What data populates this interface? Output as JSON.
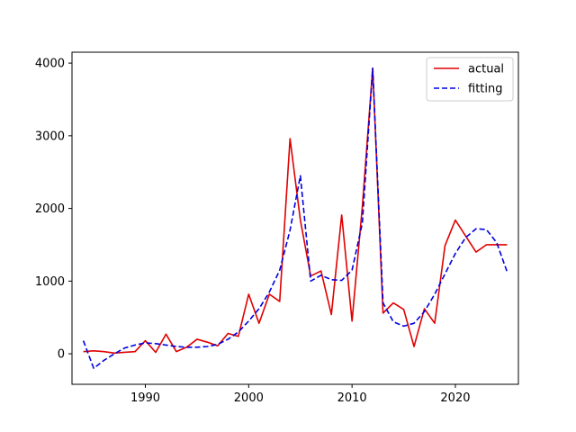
{
  "chart_data": {
    "type": "line",
    "title": "",
    "xlabel": "",
    "ylabel": "",
    "xlim": [
      1982.9,
      2026.1
    ],
    "ylim": [
      -420,
      4150
    ],
    "xticks": [
      1990,
      2000,
      2010,
      2020
    ],
    "yticks": [
      0,
      1000,
      2000,
      3000,
      4000
    ],
    "grid": false,
    "legend_position": "top-right",
    "x": [
      1984,
      1985,
      1986,
      1987,
      1988,
      1989,
      1990,
      1991,
      1992,
      1993,
      1994,
      1995,
      1996,
      1997,
      1998,
      1999,
      2000,
      2001,
      2002,
      2003,
      2004,
      2005,
      2006,
      2007,
      2008,
      2009,
      2010,
      2011,
      2012,
      2013,
      2014,
      2015,
      2016,
      2017,
      2018,
      2019,
      2020,
      2021,
      2022,
      2023,
      2024,
      2025
    ],
    "series": [
      {
        "name": "actual",
        "color": "#e00000",
        "dash": "solid",
        "values": [
          30,
          40,
          30,
          10,
          20,
          30,
          180,
          20,
          270,
          30,
          90,
          200,
          160,
          110,
          280,
          240,
          820,
          420,
          820,
          720,
          2960,
          1840,
          1070,
          1140,
          540,
          1910,
          450,
          2030,
          3930,
          560,
          700,
          610,
          100,
          620,
          420,
          1490,
          1840,
          1620,
          1400,
          1500,
          1500,
          1500
        ]
      },
      {
        "name": "fitting",
        "color": "#0000e0",
        "dash": "dashed",
        "values": [
          180,
          -200,
          -90,
          0,
          80,
          120,
          150,
          140,
          120,
          100,
          90,
          90,
          100,
          130,
          200,
          300,
          450,
          620,
          850,
          1150,
          1700,
          2450,
          1000,
          1080,
          1020,
          1010,
          1150,
          1800,
          3930,
          700,
          440,
          380,
          420,
          580,
          820,
          1100,
          1380,
          1600,
          1720,
          1710,
          1530,
          1130
        ]
      }
    ]
  }
}
